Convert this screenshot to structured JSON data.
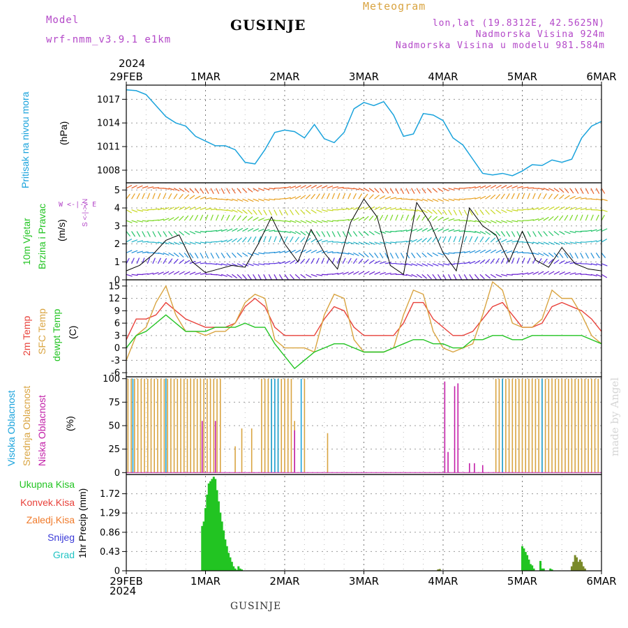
{
  "header": {
    "model_label": "Model",
    "model_value": "wrf-nmm_v3.9.1  e1km",
    "title": "GUSINJE",
    "meteogram_label": "Meteogram",
    "lonlat": "lon,lat (19.8312E, 42.5625N)",
    "elevation": "Nadmorska Visina 924m",
    "model_elevation": "Nadmorska Visina u modelu 981.584m",
    "footer_title": "GUSINJE",
    "watermark": "made by Angel"
  },
  "time_axis": {
    "year": "2024",
    "ticks": [
      "29FEB",
      "1MAR",
      "2MAR",
      "3MAR",
      "4MAR",
      "5MAR",
      "6MAR"
    ],
    "range_hours": [
      0,
      144
    ]
  },
  "panels": {
    "pressure": {
      "label": "Pritisak na nivou mora",
      "unit": "(hPa)",
      "color": "#1aa3dc",
      "ticks": [
        "1017",
        "1014",
        "1011",
        "1008"
      ],
      "tick_values": [
        1017,
        1014,
        1011,
        1008
      ]
    },
    "wind": {
      "label_line1": "10m Vjetar",
      "label_line2": "Brzina i Pravac",
      "unit": "(m/s)",
      "compass_ns": "S <-|-> N",
      "compass_we": "W <-|-> E",
      "ticks": [
        "0",
        "1",
        "2",
        "3",
        "4",
        "5"
      ],
      "tick_values": [
        0,
        1,
        2,
        3,
        4,
        5
      ]
    },
    "temperature": {
      "label_2m": "2m Temp",
      "label_sfc": "SFC Temp",
      "label_dewpt": "dewpt Temp",
      "unit": "(C)",
      "color_2m": "#e8413a",
      "color_sfc": "#d9a441",
      "color_dewpt": "#22c422",
      "ticks": [
        "15",
        "12",
        "9",
        "6",
        "3",
        "0",
        "-3",
        "-6"
      ],
      "tick_values": [
        15,
        12,
        9,
        6,
        3,
        0,
        -3,
        -6
      ]
    },
    "clouds": {
      "label_high": "Visoka Oblacnost",
      "label_mid": "Srednja Oblacnost",
      "label_low": "Niska Oblacnost",
      "unit": "(%)",
      "color_high": "#1aa3dc",
      "color_mid": "#d9a441",
      "color_low": "#c21fa8",
      "ticks": [
        "100",
        "75",
        "50",
        "25",
        "0"
      ],
      "tick_values": [
        100,
        75,
        50,
        25,
        0
      ]
    },
    "precip": {
      "unit": "1hr Precip (mm)",
      "ticks": [
        "1.72",
        "1.29",
        "0.86",
        "0.43",
        "0"
      ],
      "tick_values": [
        1.72,
        1.29,
        0.86,
        0.43,
        0
      ],
      "legend": [
        {
          "label": "Ukupna Kisa",
          "color": "#22c422"
        },
        {
          "label": "Konvek.Kisa",
          "color": "#e8413a"
        },
        {
          "label": "Zaledj.Kisa",
          "color": "#f07a2a"
        },
        {
          "label": "Snijeg",
          "color": "#3a3ad8"
        },
        {
          "label": "Grad",
          "color": "#22c4c4"
        }
      ]
    }
  },
  "chart_data": [
    {
      "type": "line",
      "series": [
        {
          "name": "Pritisak na nivou mora",
          "x": [
            0,
            3,
            6,
            9,
            12,
            15,
            18,
            21,
            24,
            27,
            30,
            33,
            36,
            39,
            42,
            45,
            48,
            51,
            54,
            57,
            60,
            63,
            66,
            69,
            72,
            75,
            78,
            81,
            84,
            87,
            90,
            93,
            96,
            99,
            102,
            105,
            108,
            111,
            114,
            117,
            120,
            123,
            126,
            129,
            132,
            135,
            138,
            141,
            144
          ],
          "values": [
            1018.2,
            1018.1,
            1017.6,
            1016.2,
            1014.8,
            1014.0,
            1013.6,
            1012.3,
            1011.7,
            1011.1,
            1011.1,
            1010.6,
            1009.0,
            1008.8,
            1010.6,
            1012.8,
            1013.1,
            1012.9,
            1012.1,
            1013.8,
            1012.0,
            1011.5,
            1012.8,
            1015.8,
            1016.6,
            1016.2,
            1016.7,
            1015.0,
            1012.3,
            1012.6,
            1015.2,
            1015.0,
            1014.3,
            1012.1,
            1011.2,
            1009.4,
            1007.6,
            1007.4,
            1007.6,
            1007.3,
            1007.9,
            1008.7,
            1008.6,
            1009.3,
            1009.0,
            1009.4,
            1012.1,
            1013.6,
            1014.2
          ]
        }
      ],
      "ylim": [
        1006.4,
        1018.8
      ]
    },
    {
      "type": "line",
      "series": [
        {
          "name": "2m Temp",
          "x": [
            0,
            3,
            6,
            9,
            12,
            15,
            18,
            21,
            24,
            27,
            30,
            33,
            36,
            39,
            42,
            45,
            48,
            51,
            54,
            57,
            60,
            63,
            66,
            69,
            72,
            75,
            78,
            81,
            84,
            87,
            90,
            93,
            96,
            99,
            102,
            105,
            108,
            111,
            114,
            117,
            120,
            123,
            126,
            129,
            132,
            135,
            138,
            141,
            144
          ],
          "values": [
            2,
            7,
            7,
            8,
            11,
            9,
            7,
            6,
            5,
            5,
            5,
            6,
            10,
            12,
            10,
            5,
            3,
            3,
            3,
            3,
            7,
            10,
            9,
            5,
            3,
            3,
            3,
            3,
            6,
            11,
            11,
            7,
            5,
            3,
            3,
            4,
            7,
            10,
            11,
            8,
            5,
            5,
            6,
            10,
            11,
            10,
            9,
            7,
            4
          ]
        },
        {
          "name": "SFC Temp",
          "x": [
            0,
            3,
            6,
            9,
            12,
            15,
            18,
            21,
            24,
            27,
            30,
            33,
            36,
            39,
            42,
            45,
            48,
            51,
            54,
            57,
            60,
            63,
            66,
            69,
            72,
            75,
            78,
            81,
            84,
            87,
            90,
            93,
            96,
            99,
            102,
            105,
            108,
            111,
            114,
            117,
            120,
            123,
            126,
            129,
            132,
            135,
            138,
            141,
            144
          ],
          "values": [
            -3,
            3,
            5,
            11,
            15,
            8,
            4,
            4,
            3,
            4,
            4,
            6,
            11,
            13,
            12,
            2,
            0,
            0,
            0,
            -1,
            8,
            13,
            12,
            2,
            -1,
            -1,
            -1,
            0,
            8,
            14,
            13,
            4,
            0,
            -1,
            0,
            1,
            8,
            16,
            14,
            6,
            5,
            5,
            7,
            14,
            12,
            12,
            8,
            3,
            1
          ]
        },
        {
          "name": "dewpt Temp",
          "x": [
            0,
            3,
            6,
            9,
            12,
            15,
            18,
            21,
            24,
            27,
            30,
            33,
            36,
            39,
            42,
            45,
            48,
            51,
            54,
            57,
            60,
            63,
            66,
            69,
            72,
            75,
            78,
            81,
            84,
            87,
            90,
            93,
            96,
            99,
            102,
            105,
            108,
            111,
            114,
            117,
            120,
            123,
            126,
            129,
            132,
            135,
            138,
            141,
            144
          ],
          "values": [
            0,
            3,
            4,
            6,
            8,
            6,
            4,
            4,
            4,
            5,
            5,
            5,
            6,
            5,
            5,
            1,
            -2,
            -5,
            -3,
            -1,
            0,
            1,
            1,
            0,
            -1,
            -1,
            -1,
            0,
            1,
            2,
            2,
            1,
            1,
            0,
            0,
            2,
            2,
            3,
            3,
            2,
            2,
            3,
            3,
            3,
            3,
            3,
            3,
            2,
            1
          ]
        }
      ],
      "ylim": [
        -7,
        16.5
      ]
    },
    {
      "type": "bar",
      "series": [
        {
          "name": "Visoka Oblacnost",
          "segments": [
            [
              2,
              3,
              100
            ],
            [
              12,
              13,
              100
            ],
            [
              44,
              47,
              100
            ],
            [
              53,
              53.5,
              100
            ],
            [
              114,
              115,
              100
            ],
            [
              126,
              127,
              100
            ]
          ]
        },
        {
          "name": "Srednja Oblacnost",
          "segments": [
            [
              0.5,
              29,
              100
            ],
            [
              33,
              34,
              28
            ],
            [
              35,
              36,
              47
            ],
            [
              38,
              39,
              47
            ],
            [
              41,
              51,
              100
            ],
            [
              51,
              52,
              55
            ],
            [
              54,
              54.5,
              100
            ],
            [
              61,
              61.5,
              42
            ],
            [
              112,
              144,
              100
            ]
          ]
        },
        {
          "name": "Niska Oblacnost",
          "segments": [
            [
              23,
              24,
              55
            ],
            [
              27,
              28,
              55
            ],
            [
              51,
              52,
              45
            ],
            [
              96.5,
              97,
              97
            ],
            [
              97.5,
              98,
              22
            ],
            [
              99.5,
              100,
              92
            ],
            [
              100.5,
              101,
              95
            ],
            [
              104,
              104.5,
              10
            ],
            [
              105.5,
              106,
              10
            ],
            [
              108,
              108.5,
              8
            ]
          ]
        }
      ],
      "ylim": [
        -2,
        102
      ]
    },
    {
      "type": "bar",
      "series": [
        {
          "name": "Ukupna Kisa",
          "x": [
            23,
            23.5,
            24,
            24.5,
            25,
            25.5,
            26,
            26.5,
            27,
            27.5,
            28,
            28.5,
            29,
            29.5,
            30,
            30.5,
            31,
            31.5,
            32,
            32.5,
            33,
            33.5,
            34,
            34.5,
            35,
            120,
            120.5,
            121,
            121.5,
            122,
            122.5,
            123,
            123.5,
            125.5,
            126,
            126.5,
            128.5,
            129
          ],
          "values": [
            1.0,
            1.1,
            1.4,
            1.7,
            1.95,
            2.0,
            2.05,
            2.1,
            2.05,
            1.8,
            1.55,
            1.3,
            1.1,
            0.9,
            0.7,
            0.55,
            0.4,
            0.3,
            0.2,
            0.1,
            0.05,
            0.02,
            0.1,
            0.05,
            0.03,
            0.55,
            0.5,
            0.42,
            0.35,
            0.25,
            0.15,
            0.12,
            0.05,
            0.22,
            0.05,
            0.05,
            0.05,
            0.03
          ]
        },
        {
          "name": "Zaledj.Kisa",
          "x": [
            94.5,
            95,
            135,
            135.5,
            136,
            136.5,
            137,
            137.5,
            138,
            138.5,
            139
          ],
          "values": [
            0.03,
            0.04,
            0.1,
            0.2,
            0.35,
            0.3,
            0.2,
            0.25,
            0.2,
            0.1,
            0.05
          ]
        }
      ],
      "ylim": [
        0,
        2.15
      ]
    }
  ]
}
